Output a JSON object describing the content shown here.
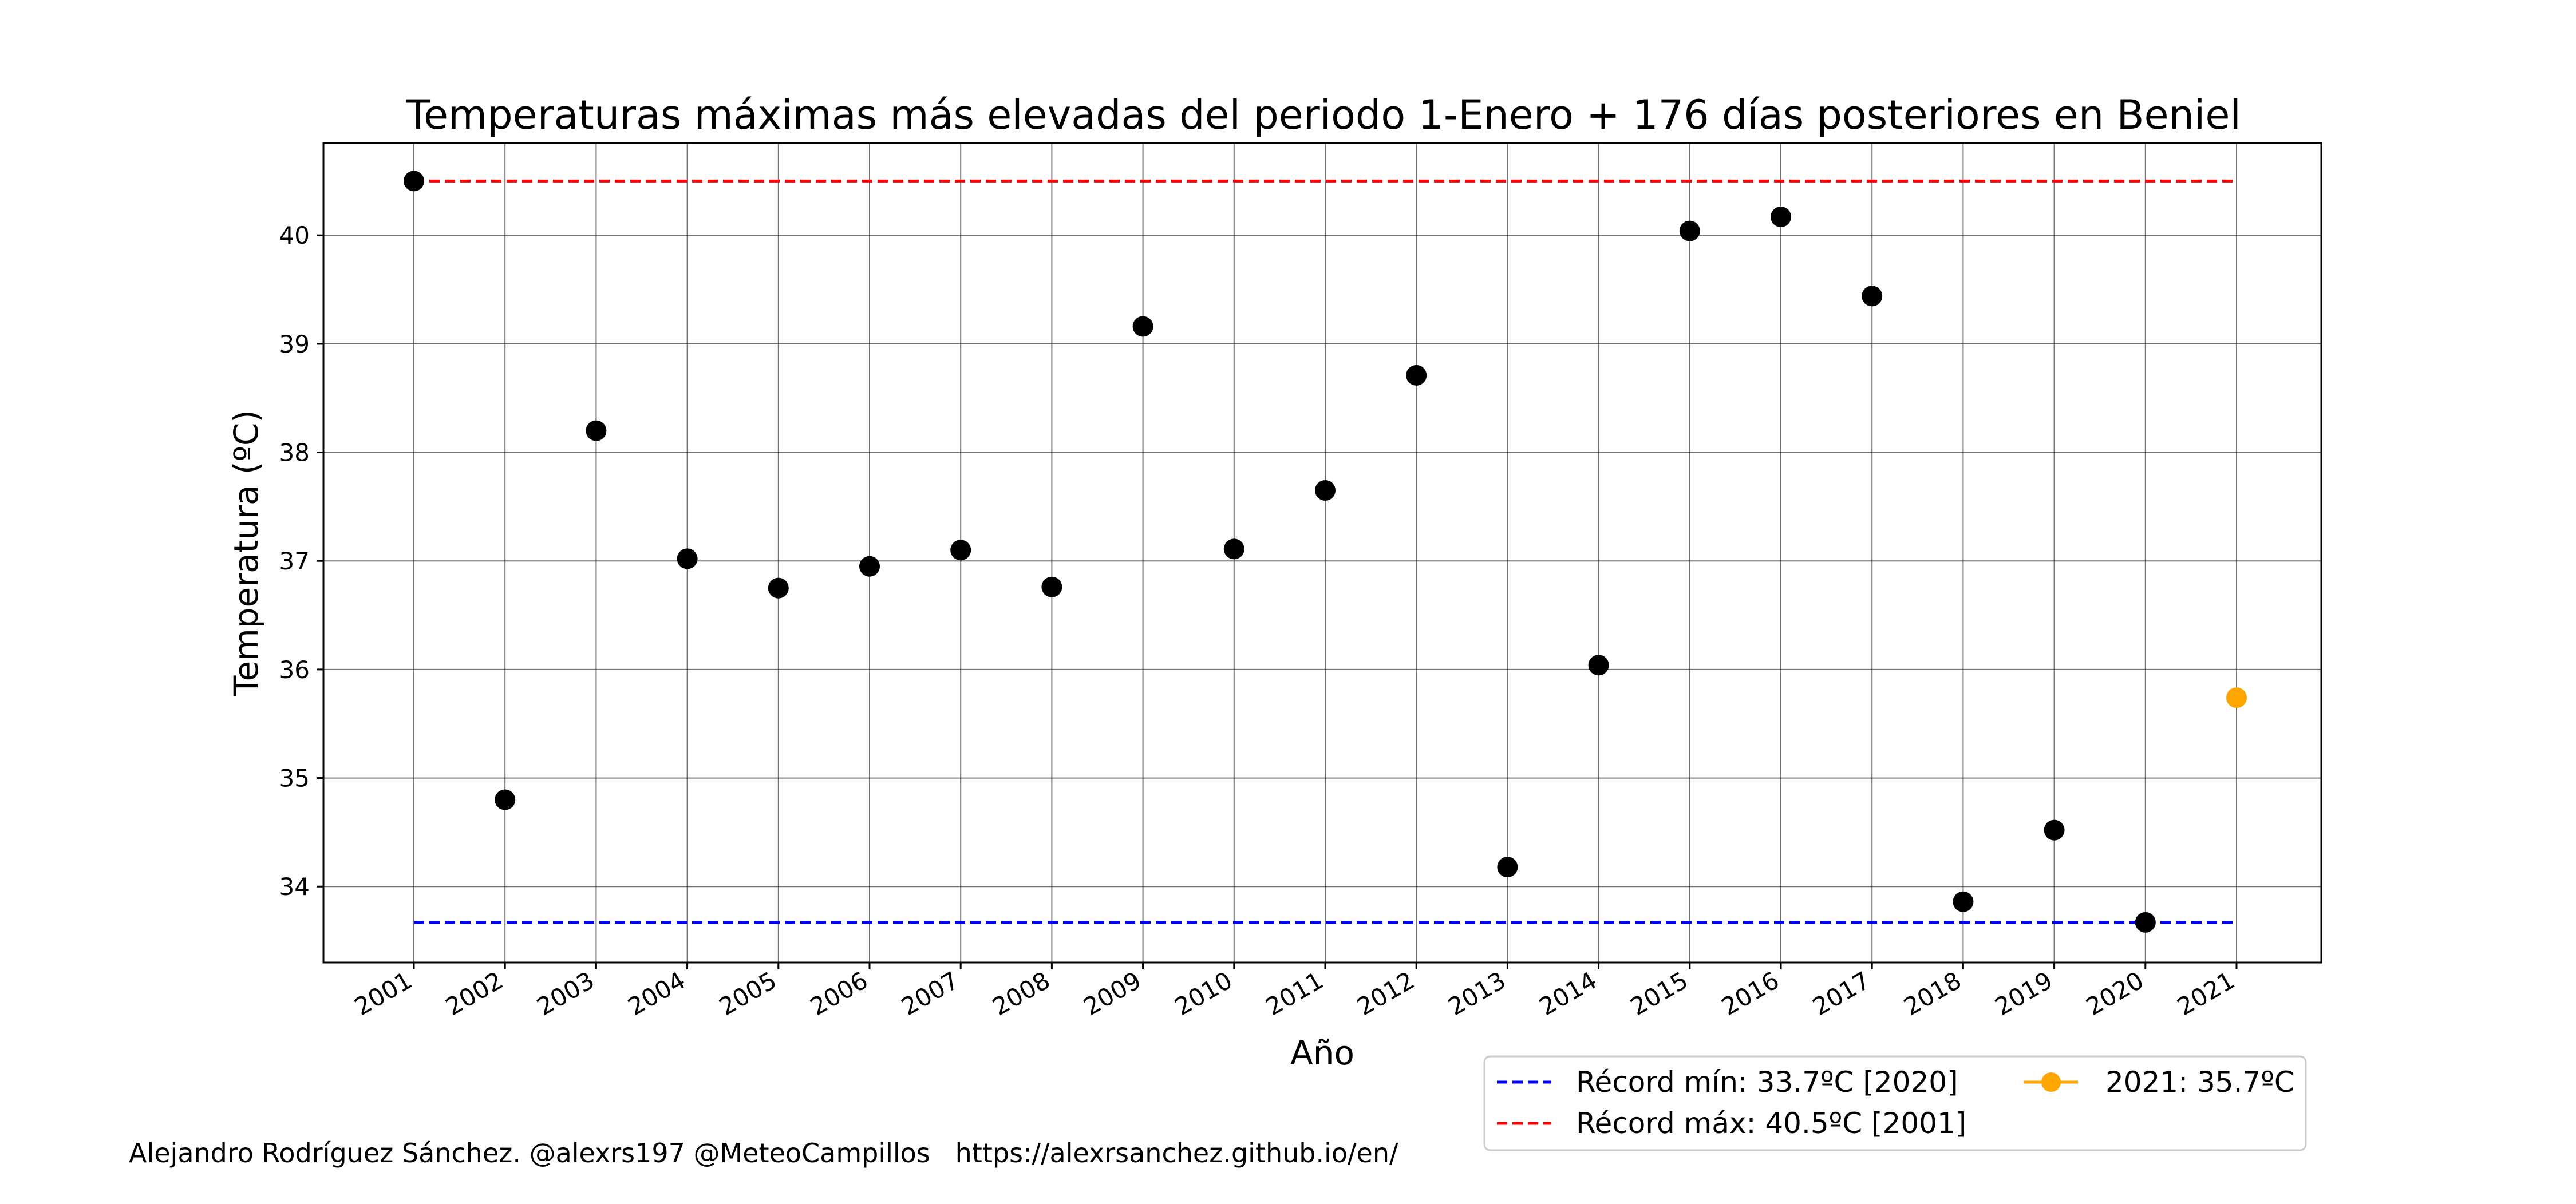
{
  "chart_data": {
    "type": "scatter",
    "title": "Temperaturas máximas más elevadas del periodo 1-Enero + 176 días posteriores en Beniel",
    "xlabel": "Año",
    "ylabel": "Temperatura (ºC)",
    "ylim": [
      33.3,
      40.85
    ],
    "yticks": [
      34,
      35,
      36,
      37,
      38,
      39,
      40
    ],
    "grid": true,
    "categories": [
      "2001",
      "2002",
      "2003",
      "2004",
      "2005",
      "2006",
      "2007",
      "2008",
      "2009",
      "2010",
      "2011",
      "2012",
      "2013",
      "2014",
      "2015",
      "2016",
      "2017",
      "2018",
      "2019",
      "2020",
      "2021"
    ],
    "series": [
      {
        "color": "#000000",
        "values": [
          40.5,
          34.8,
          38.2,
          37.02,
          36.75,
          36.95,
          37.1,
          36.76,
          39.16,
          37.11,
          37.65,
          38.71,
          34.18,
          36.04,
          40.04,
          40.17,
          39.44,
          33.86,
          34.52,
          33.67,
          null
        ]
      },
      {
        "name": "2021: 35.7ºC",
        "color": "#ffa500",
        "values": [
          null,
          null,
          null,
          null,
          null,
          null,
          null,
          null,
          null,
          null,
          null,
          null,
          null,
          null,
          null,
          null,
          null,
          null,
          null,
          null,
          35.74
        ]
      }
    ],
    "hlines": [
      {
        "name": "Récord mín: 33.7ºC [2020]",
        "value": 33.67,
        "color": "#0000ff",
        "style": "dashed"
      },
      {
        "name": "Récord máx: 40.5ºC [2001]",
        "value": 40.5,
        "color": "#ff0000",
        "style": "dashed"
      }
    ],
    "legend_position": "below-right"
  },
  "footer": {
    "credit": "Alejandro Rodríguez Sánchez. @alexrs197 @MeteoCampillos   https://alexrsanchez.github.io/en/"
  }
}
